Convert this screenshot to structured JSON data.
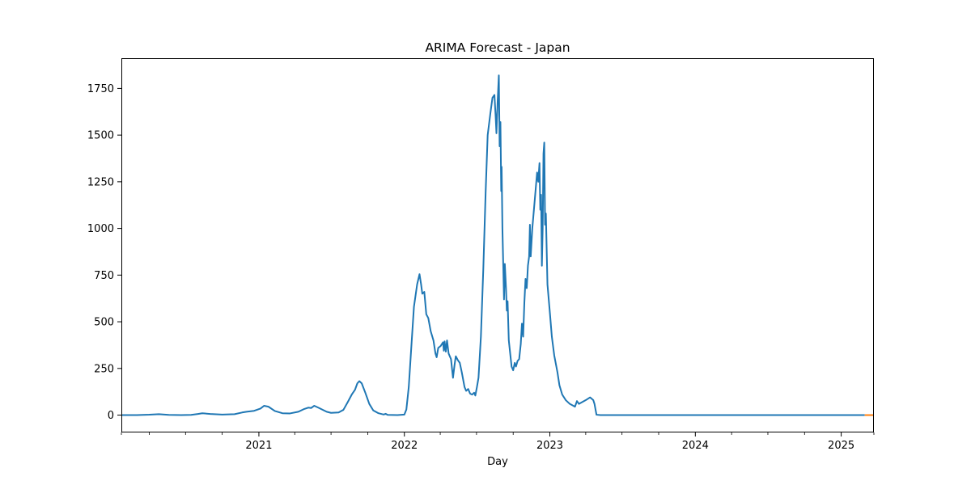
{
  "chart_data": {
    "type": "line",
    "title": "ARIMA Forecast - Japan",
    "xlabel": "Day",
    "ylabel": "",
    "xlim": [
      "2020-01-22",
      "2025-03-24"
    ],
    "ylim": [
      -93,
      1912
    ],
    "x_ticks": [
      {
        "date": "2021-01-01",
        "label": "2021"
      },
      {
        "date": "2022-01-01",
        "label": "2022"
      },
      {
        "date": "2023-01-01",
        "label": "2023"
      },
      {
        "date": "2024-01-01",
        "label": "2024"
      },
      {
        "date": "2025-01-01",
        "label": "2025"
      }
    ],
    "x_minor_ticks": [
      "2020-01-22",
      "2020-04-01",
      "2020-07-01",
      "2020-10-01",
      "2021-04-01",
      "2021-07-01",
      "2021-10-01",
      "2022-04-01",
      "2022-07-01",
      "2022-10-01",
      "2023-04-01",
      "2023-07-01",
      "2023-10-01",
      "2024-04-01",
      "2024-07-01",
      "2024-10-01",
      "2025-03-24"
    ],
    "y_ticks": [
      0,
      250,
      500,
      750,
      1000,
      1250,
      1500,
      1750
    ],
    "grid": false,
    "legend": "none",
    "series": [
      {
        "color": "#1f77b4",
        "points": [
          [
            "2020-01-22",
            0
          ],
          [
            "2020-03-01",
            0
          ],
          [
            "2020-04-01",
            2
          ],
          [
            "2020-04-25",
            5
          ],
          [
            "2020-05-20",
            1
          ],
          [
            "2020-06-20",
            0
          ],
          [
            "2020-07-15",
            1
          ],
          [
            "2020-08-01",
            6
          ],
          [
            "2020-08-12",
            10
          ],
          [
            "2020-09-01",
            6
          ],
          [
            "2020-10-01",
            3
          ],
          [
            "2020-11-01",
            5
          ],
          [
            "2020-11-20",
            14
          ],
          [
            "2020-12-01",
            18
          ],
          [
            "2020-12-20",
            23
          ],
          [
            "2021-01-05",
            35
          ],
          [
            "2021-01-14",
            50
          ],
          [
            "2021-01-25",
            45
          ],
          [
            "2021-02-10",
            22
          ],
          [
            "2021-03-01",
            10
          ],
          [
            "2021-03-20",
            9
          ],
          [
            "2021-04-10",
            18
          ],
          [
            "2021-04-25",
            33
          ],
          [
            "2021-05-05",
            40
          ],
          [
            "2021-05-12",
            38
          ],
          [
            "2021-05-20",
            50
          ],
          [
            "2021-06-01",
            38
          ],
          [
            "2021-06-20",
            18
          ],
          [
            "2021-07-01",
            12
          ],
          [
            "2021-07-20",
            14
          ],
          [
            "2021-08-01",
            28
          ],
          [
            "2021-08-12",
            70
          ],
          [
            "2021-08-22",
            110
          ],
          [
            "2021-08-30",
            135
          ],
          [
            "2021-09-05",
            170
          ],
          [
            "2021-09-10",
            182
          ],
          [
            "2021-09-16",
            170
          ],
          [
            "2021-09-25",
            120
          ],
          [
            "2021-10-05",
            60
          ],
          [
            "2021-10-15",
            25
          ],
          [
            "2021-10-28",
            10
          ],
          [
            "2021-11-10",
            3
          ],
          [
            "2021-11-15",
            7
          ],
          [
            "2021-11-20",
            1
          ],
          [
            "2021-12-15",
            0
          ],
          [
            "2022-01-01",
            3
          ],
          [
            "2022-01-06",
            30
          ],
          [
            "2022-01-12",
            150
          ],
          [
            "2022-01-18",
            350
          ],
          [
            "2022-01-25",
            580
          ],
          [
            "2022-02-02",
            700
          ],
          [
            "2022-02-08",
            755
          ],
          [
            "2022-02-12",
            700
          ],
          [
            "2022-02-15",
            650
          ],
          [
            "2022-02-20",
            660
          ],
          [
            "2022-02-25",
            540
          ],
          [
            "2022-03-02",
            520
          ],
          [
            "2022-03-08",
            450
          ],
          [
            "2022-03-15",
            400
          ],
          [
            "2022-03-20",
            330
          ],
          [
            "2022-03-23",
            310
          ],
          [
            "2022-03-27",
            360
          ],
          [
            "2022-04-02",
            370
          ],
          [
            "2022-04-08",
            390
          ],
          [
            "2022-04-10",
            345
          ],
          [
            "2022-04-12",
            395
          ],
          [
            "2022-04-15",
            340
          ],
          [
            "2022-04-18",
            400
          ],
          [
            "2022-04-22",
            330
          ],
          [
            "2022-04-28",
            300
          ],
          [
            "2022-05-03",
            200
          ],
          [
            "2022-05-07",
            270
          ],
          [
            "2022-05-10",
            315
          ],
          [
            "2022-05-15",
            295
          ],
          [
            "2022-05-20",
            280
          ],
          [
            "2022-05-25",
            230
          ],
          [
            "2022-06-01",
            150
          ],
          [
            "2022-06-05",
            130
          ],
          [
            "2022-06-10",
            140
          ],
          [
            "2022-06-15",
            115
          ],
          [
            "2022-06-20",
            110
          ],
          [
            "2022-06-25",
            120
          ],
          [
            "2022-06-28",
            105
          ],
          [
            "2022-07-02",
            150
          ],
          [
            "2022-07-06",
            200
          ],
          [
            "2022-07-12",
            420
          ],
          [
            "2022-07-18",
            780
          ],
          [
            "2022-07-24",
            1200
          ],
          [
            "2022-07-29",
            1500
          ],
          [
            "2022-08-05",
            1620
          ],
          [
            "2022-08-10",
            1700
          ],
          [
            "2022-08-15",
            1715
          ],
          [
            "2022-08-18",
            1600
          ],
          [
            "2022-08-20",
            1510
          ],
          [
            "2022-08-23",
            1680
          ],
          [
            "2022-08-26",
            1820
          ],
          [
            "2022-08-28",
            1440
          ],
          [
            "2022-08-30",
            1570
          ],
          [
            "2022-09-01",
            1200
          ],
          [
            "2022-09-02",
            1330
          ],
          [
            "2022-09-04",
            1000
          ],
          [
            "2022-09-08",
            620
          ],
          [
            "2022-09-10",
            810
          ],
          [
            "2022-09-13",
            680
          ],
          [
            "2022-09-15",
            560
          ],
          [
            "2022-09-17",
            610
          ],
          [
            "2022-09-20",
            400
          ],
          [
            "2022-09-23",
            340
          ],
          [
            "2022-09-27",
            260
          ],
          [
            "2022-10-01",
            240
          ],
          [
            "2022-10-05",
            280
          ],
          [
            "2022-10-08",
            260
          ],
          [
            "2022-10-12",
            290
          ],
          [
            "2022-10-16",
            300
          ],
          [
            "2022-10-20",
            380
          ],
          [
            "2022-10-23",
            490
          ],
          [
            "2022-10-26",
            420
          ],
          [
            "2022-10-29",
            600
          ],
          [
            "2022-11-01",
            730
          ],
          [
            "2022-11-04",
            680
          ],
          [
            "2022-11-07",
            800
          ],
          [
            "2022-11-10",
            850
          ],
          [
            "2022-11-12",
            1020
          ],
          [
            "2022-11-14",
            850
          ],
          [
            "2022-11-18",
            1000
          ],
          [
            "2022-11-22",
            1100
          ],
          [
            "2022-11-26",
            1200
          ],
          [
            "2022-11-30",
            1300
          ],
          [
            "2022-12-03",
            1250
          ],
          [
            "2022-12-06",
            1350
          ],
          [
            "2022-12-08",
            1100
          ],
          [
            "2022-12-10",
            1180
          ],
          [
            "2022-12-12",
            800
          ],
          [
            "2022-12-14",
            1000
          ],
          [
            "2022-12-16",
            1400
          ],
          [
            "2022-12-18",
            1460
          ],
          [
            "2022-12-20",
            1020
          ],
          [
            "2022-12-22",
            1080
          ],
          [
            "2022-12-26",
            700
          ],
          [
            "2023-01-01",
            550
          ],
          [
            "2023-01-06",
            420
          ],
          [
            "2023-01-12",
            320
          ],
          [
            "2023-01-20",
            230
          ],
          [
            "2023-01-25",
            160
          ],
          [
            "2023-02-01",
            110
          ],
          [
            "2023-02-10",
            80
          ],
          [
            "2023-02-20",
            60
          ],
          [
            "2023-03-01",
            50
          ],
          [
            "2023-03-05",
            45
          ],
          [
            "2023-03-10",
            75
          ],
          [
            "2023-03-15",
            60
          ],
          [
            "2023-04-01",
            80
          ],
          [
            "2023-04-12",
            95
          ],
          [
            "2023-04-20",
            80
          ],
          [
            "2023-04-23",
            60
          ],
          [
            "2023-04-28",
            2
          ],
          [
            "2023-05-08",
            0
          ],
          [
            "2023-06-01",
            0
          ],
          [
            "2024-01-01",
            0
          ],
          [
            "2024-07-01",
            0
          ],
          [
            "2025-01-01",
            0
          ],
          [
            "2025-03-01",
            0
          ]
        ]
      },
      {
        "color": "#ff7f0e",
        "points": [
          [
            "2025-03-01",
            0
          ],
          [
            "2025-03-24",
            0
          ]
        ]
      }
    ]
  }
}
